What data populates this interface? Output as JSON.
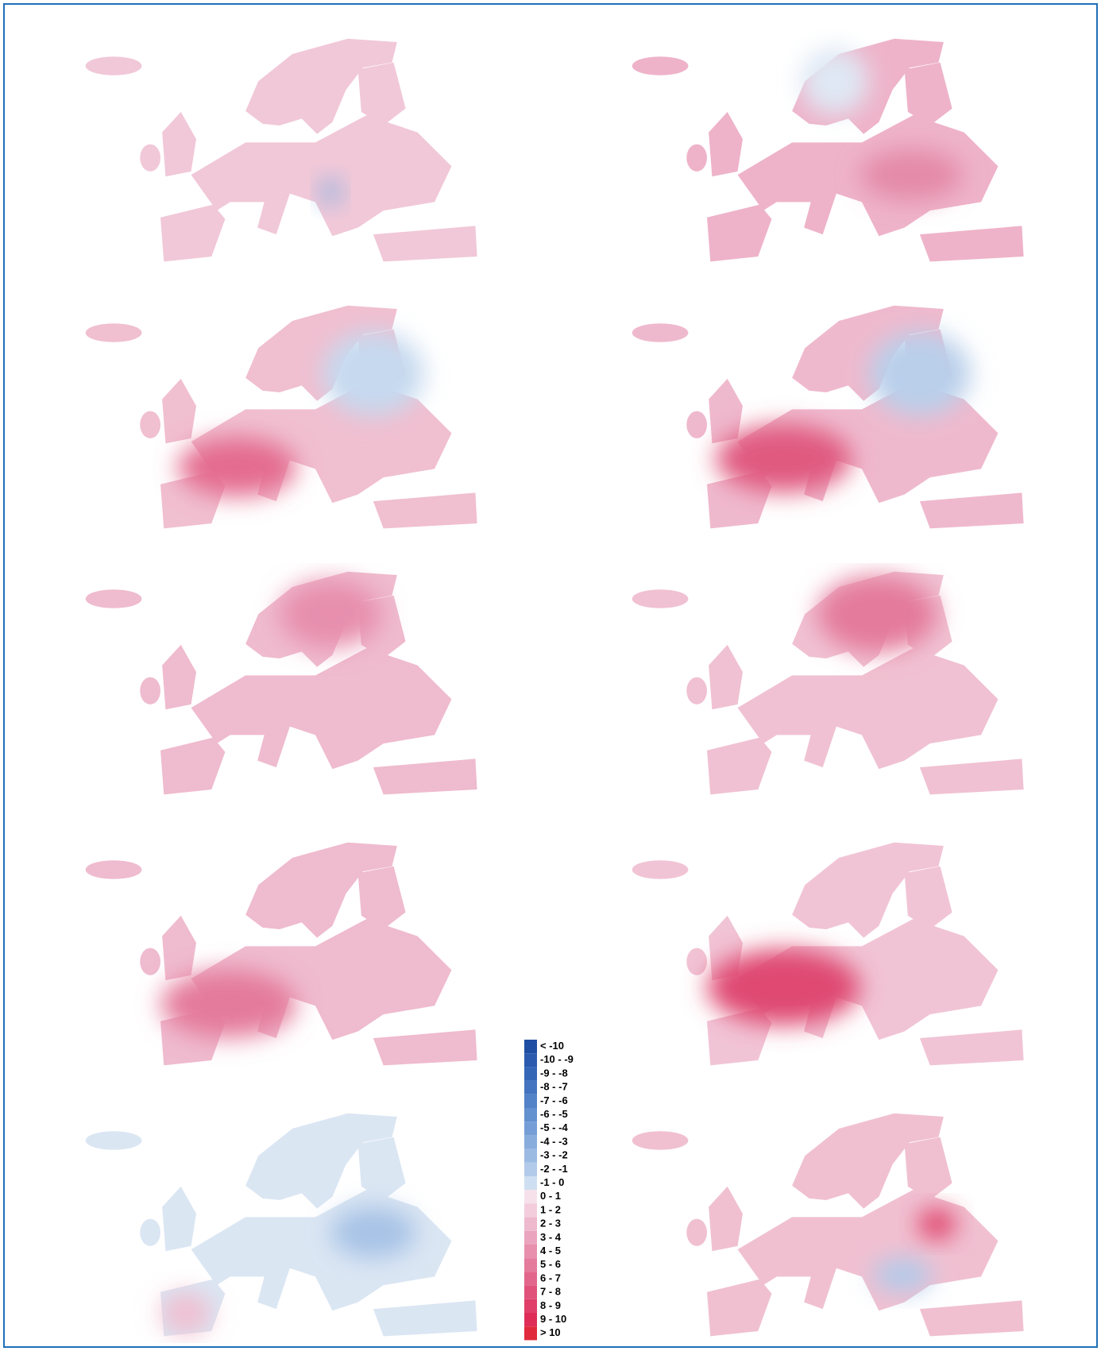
{
  "legend": {
    "items": [
      {
        "label": "< -10",
        "color": "#1f4fa3"
      },
      {
        "label": "-10 - -9",
        "color": "#2a5bae"
      },
      {
        "label": "-9 - -8",
        "color": "#3567b7"
      },
      {
        "label": "-8 - -7",
        "color": "#4274c0"
      },
      {
        "label": "-7 - -6",
        "color": "#5282c8"
      },
      {
        "label": "-6 - -5",
        "color": "#6390cf"
      },
      {
        "label": "-5 - -4",
        "color": "#759ed6"
      },
      {
        "label": "-4 - -3",
        "color": "#88acdc"
      },
      {
        "label": "-3 - -2",
        "color": "#9cbbe3"
      },
      {
        "label": "-2 - -1",
        "color": "#b3cbea"
      },
      {
        "label": "-1 - 0",
        "color": "#cfdff2"
      },
      {
        "label": "0 - 1",
        "color": "#f6e1ea"
      },
      {
        "label": "1 - 2",
        "color": "#f3cddc"
      },
      {
        "label": "2 - 3",
        "color": "#efb9cd"
      },
      {
        "label": "3 - 4",
        "color": "#eba4bd"
      },
      {
        "label": "4 - 5",
        "color": "#e78fad"
      },
      {
        "label": "5 - 6",
        "color": "#e47a9c"
      },
      {
        "label": "6 - 7",
        "color": "#e2668b"
      },
      {
        "label": "7 - 8",
        "color": "#e0527a"
      },
      {
        "label": "8 - 9",
        "color": "#df3f69"
      },
      {
        "label": "9 - 10",
        "color": "#de2e58"
      },
      {
        "label": "> 10",
        "color": "#e02a3c"
      }
    ]
  }
}
